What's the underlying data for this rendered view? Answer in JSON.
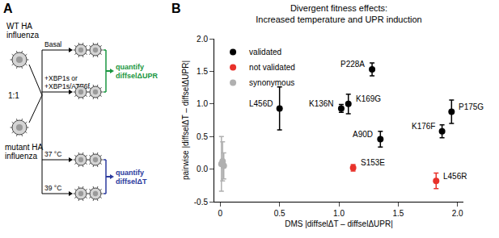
{
  "diagram": {
    "panel_label": "A",
    "wt_label": [
      "WT HA",
      "influenza"
    ],
    "mix_ratio": "1:1",
    "mutant_label": [
      "mutant HA",
      "influenza"
    ],
    "conditions": [
      [
        "Basal"
      ],
      [
        "+XBP1s or",
        "+XBP1s/ATF6f"
      ],
      [
        "37 °C"
      ],
      [
        "39 °C"
      ]
    ],
    "quantify_upr": {
      "lines": [
        "quantify",
        "diffselΔUPR"
      ],
      "color": "#1a9641"
    },
    "quantify_temp": {
      "lines": [
        "quantify",
        "diffselΔT"
      ],
      "color": "#2b3a9e"
    }
  },
  "chart_data": {
    "panel_label": "B",
    "type": "scatter",
    "title": "Divergent fitness effects:\nIncreased temperature and UPR induction",
    "x_label": "DMS |diffselΔT – diffselΔUPR|",
    "y_label": "pairwise |diffselΔT – diffselΔUPR|",
    "xlim": [
      -0.05,
      2.05
    ],
    "xticks": [
      0,
      0.5,
      {
        "value": 1,
        "label": "1.0"
      },
      1.5,
      {
        "value": 2,
        "label": "2.0"
      }
    ],
    "ylim": [
      -0.5,
      2.0
    ],
    "yticks": [
      -0.5,
      {
        "value": 0,
        "label": "0.0"
      },
      0.5,
      {
        "value": 1,
        "label": "1.0"
      },
      1.5,
      {
        "value": 2,
        "label": "2.0"
      }
    ],
    "legend": "top-left",
    "series": [
      {
        "name": "validated",
        "color": "#000000",
        "marker": "circle",
        "x": [
          0.5,
          1.02,
          1.08,
          1.28,
          1.35,
          1.95,
          1.87
        ],
        "values": [
          0.93,
          0.93,
          1.0,
          1.53,
          0.46,
          0.88,
          0.58
        ],
        "errors": [
          0.33,
          0.06,
          0.15,
          0.1,
          0.12,
          0.18,
          0.1
        ],
        "labels": [
          "L456D",
          "K136N",
          "K169G",
          "P228A",
          "A90D",
          "P175G",
          "K176F"
        ]
      },
      {
        "name": "not validated",
        "color": "#e8312a",
        "marker": "circle",
        "x": [
          1.12,
          1.82
        ],
        "values": [
          0.02,
          -0.18
        ],
        "errors": [
          0.05,
          0.12
        ],
        "labels": [
          "S153E",
          "L456R"
        ]
      },
      {
        "name": "synonymous",
        "color": "#b0b0b0",
        "marker": "circle",
        "x": [
          0.01,
          0.02,
          0.03
        ],
        "values": [
          0.08,
          0.12,
          0.05
        ],
        "errors": [
          0.42,
          0.3,
          0.2
        ]
      }
    ]
  }
}
